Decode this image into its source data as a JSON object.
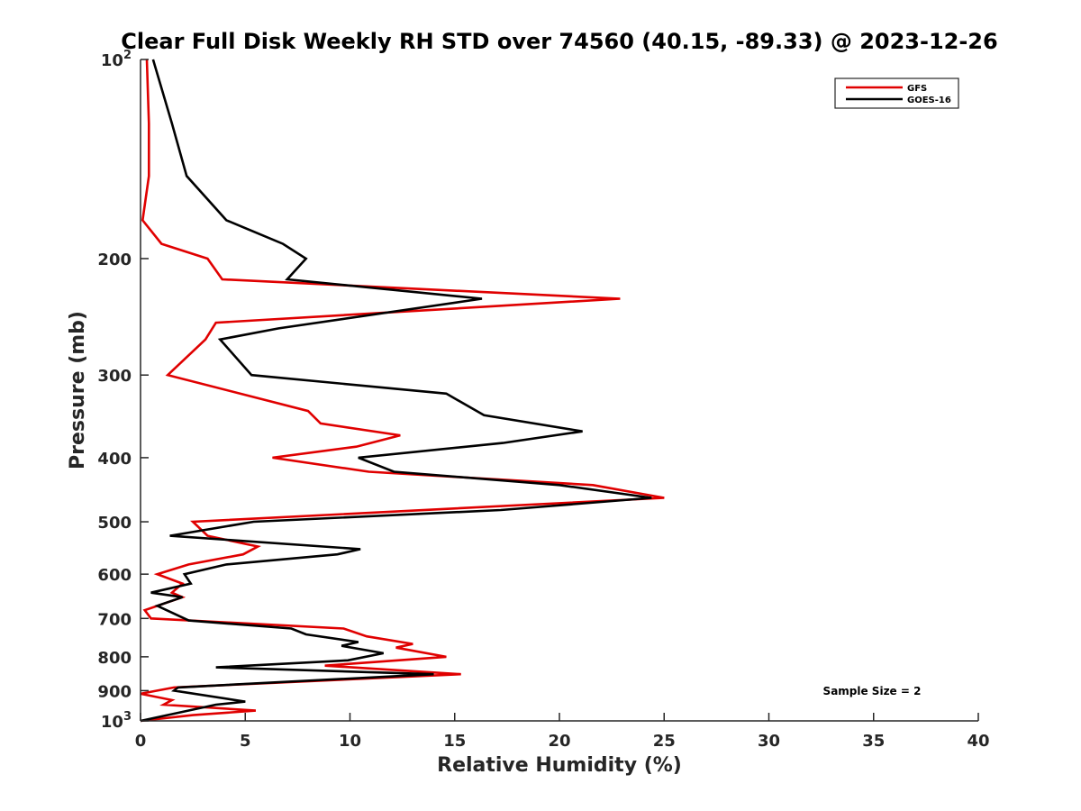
{
  "chart_data": {
    "type": "line",
    "title": "Clear Full Disk Weekly RH STD over 74560 (40.15, -89.33) @ 2023-12-26",
    "xlabel": "Relative Humidity (%)",
    "ylabel": "Pressure (mb)",
    "xlim": [
      0,
      40
    ],
    "ylim": [
      100,
      1000
    ],
    "yscale": "log",
    "y_reversed": true,
    "x_ticks": [
      "0",
      "5",
      "10",
      "15",
      "20",
      "25",
      "30",
      "35",
      "40"
    ],
    "y_ticks": [
      {
        "value": 100,
        "base": "10",
        "exp": "2"
      },
      {
        "value": 200,
        "label": "200"
      },
      {
        "value": 300,
        "label": "300"
      },
      {
        "value": 400,
        "label": "400"
      },
      {
        "value": 500,
        "label": "500"
      },
      {
        "value": 600,
        "label": "600"
      },
      {
        "value": 700,
        "label": "700"
      },
      {
        "value": 800,
        "label": "800"
      },
      {
        "value": 900,
        "label": "900"
      },
      {
        "value": 1000,
        "base": "10",
        "exp": "3"
      }
    ],
    "grid": false,
    "legend_position": "top-right",
    "annotation": "Sample Size = 2",
    "series": [
      {
        "name": "GFS",
        "color": "#e00000",
        "points": [
          [
            0.3,
            100
          ],
          [
            0.4,
            125
          ],
          [
            0.4,
            150
          ],
          [
            0.1,
            175
          ],
          [
            1.0,
            190
          ],
          [
            3.2,
            200
          ],
          [
            3.9,
            215
          ],
          [
            22.9,
            230
          ],
          [
            3.6,
            250
          ],
          [
            3.1,
            265
          ],
          [
            1.3,
            300
          ],
          [
            8.0,
            340
          ],
          [
            8.6,
            355
          ],
          [
            12.4,
            370
          ],
          [
            10.3,
            385
          ],
          [
            6.3,
            400
          ],
          [
            10.9,
            420
          ],
          [
            21.6,
            440
          ],
          [
            25.0,
            460
          ],
          [
            2.5,
            500
          ],
          [
            3.2,
            525
          ],
          [
            5.6,
            545
          ],
          [
            4.9,
            560
          ],
          [
            2.3,
            580
          ],
          [
            0.8,
            600
          ],
          [
            2.0,
            620
          ],
          [
            1.5,
            640
          ],
          [
            2.0,
            650
          ],
          [
            0.2,
            680
          ],
          [
            0.5,
            700
          ],
          [
            9.7,
            725
          ],
          [
            10.8,
            745
          ],
          [
            13.0,
            765
          ],
          [
            12.2,
            775
          ],
          [
            14.6,
            800
          ],
          [
            8.8,
            825
          ],
          [
            15.3,
            850
          ],
          [
            1.6,
            890
          ],
          [
            0.0,
            910
          ],
          [
            1.5,
            930
          ],
          [
            1.1,
            945
          ],
          [
            5.5,
            965
          ],
          [
            2.5,
            980
          ],
          [
            0.0,
            1000
          ]
        ]
      },
      {
        "name": "GOES-16",
        "color": "#000000",
        "points": [
          [
            0.6,
            100
          ],
          [
            1.5,
            125
          ],
          [
            2.2,
            150
          ],
          [
            4.1,
            175
          ],
          [
            6.8,
            190
          ],
          [
            7.9,
            200
          ],
          [
            7.0,
            215
          ],
          [
            16.3,
            230
          ],
          [
            6.6,
            255
          ],
          [
            3.8,
            265
          ],
          [
            5.3,
            300
          ],
          [
            14.6,
            320
          ],
          [
            16.4,
            345
          ],
          [
            21.1,
            365
          ],
          [
            17.3,
            380
          ],
          [
            10.4,
            400
          ],
          [
            12.1,
            420
          ],
          [
            20.0,
            440
          ],
          [
            24.4,
            460
          ],
          [
            17.2,
            480
          ],
          [
            5.4,
            500
          ],
          [
            1.4,
            525
          ],
          [
            10.5,
            550
          ],
          [
            9.4,
            560
          ],
          [
            4.1,
            580
          ],
          [
            2.1,
            600
          ],
          [
            2.4,
            620
          ],
          [
            0.5,
            640
          ],
          [
            2.0,
            650
          ],
          [
            0.8,
            670
          ],
          [
            2.3,
            705
          ],
          [
            7.2,
            725
          ],
          [
            7.9,
            740
          ],
          [
            10.4,
            760
          ],
          [
            9.6,
            770
          ],
          [
            11.6,
            790
          ],
          [
            9.9,
            810
          ],
          [
            3.6,
            830
          ],
          [
            14.0,
            850
          ],
          [
            1.8,
            890
          ],
          [
            1.6,
            900
          ],
          [
            5.0,
            935
          ],
          [
            3.6,
            945
          ],
          [
            0.0,
            1000
          ]
        ]
      }
    ]
  }
}
